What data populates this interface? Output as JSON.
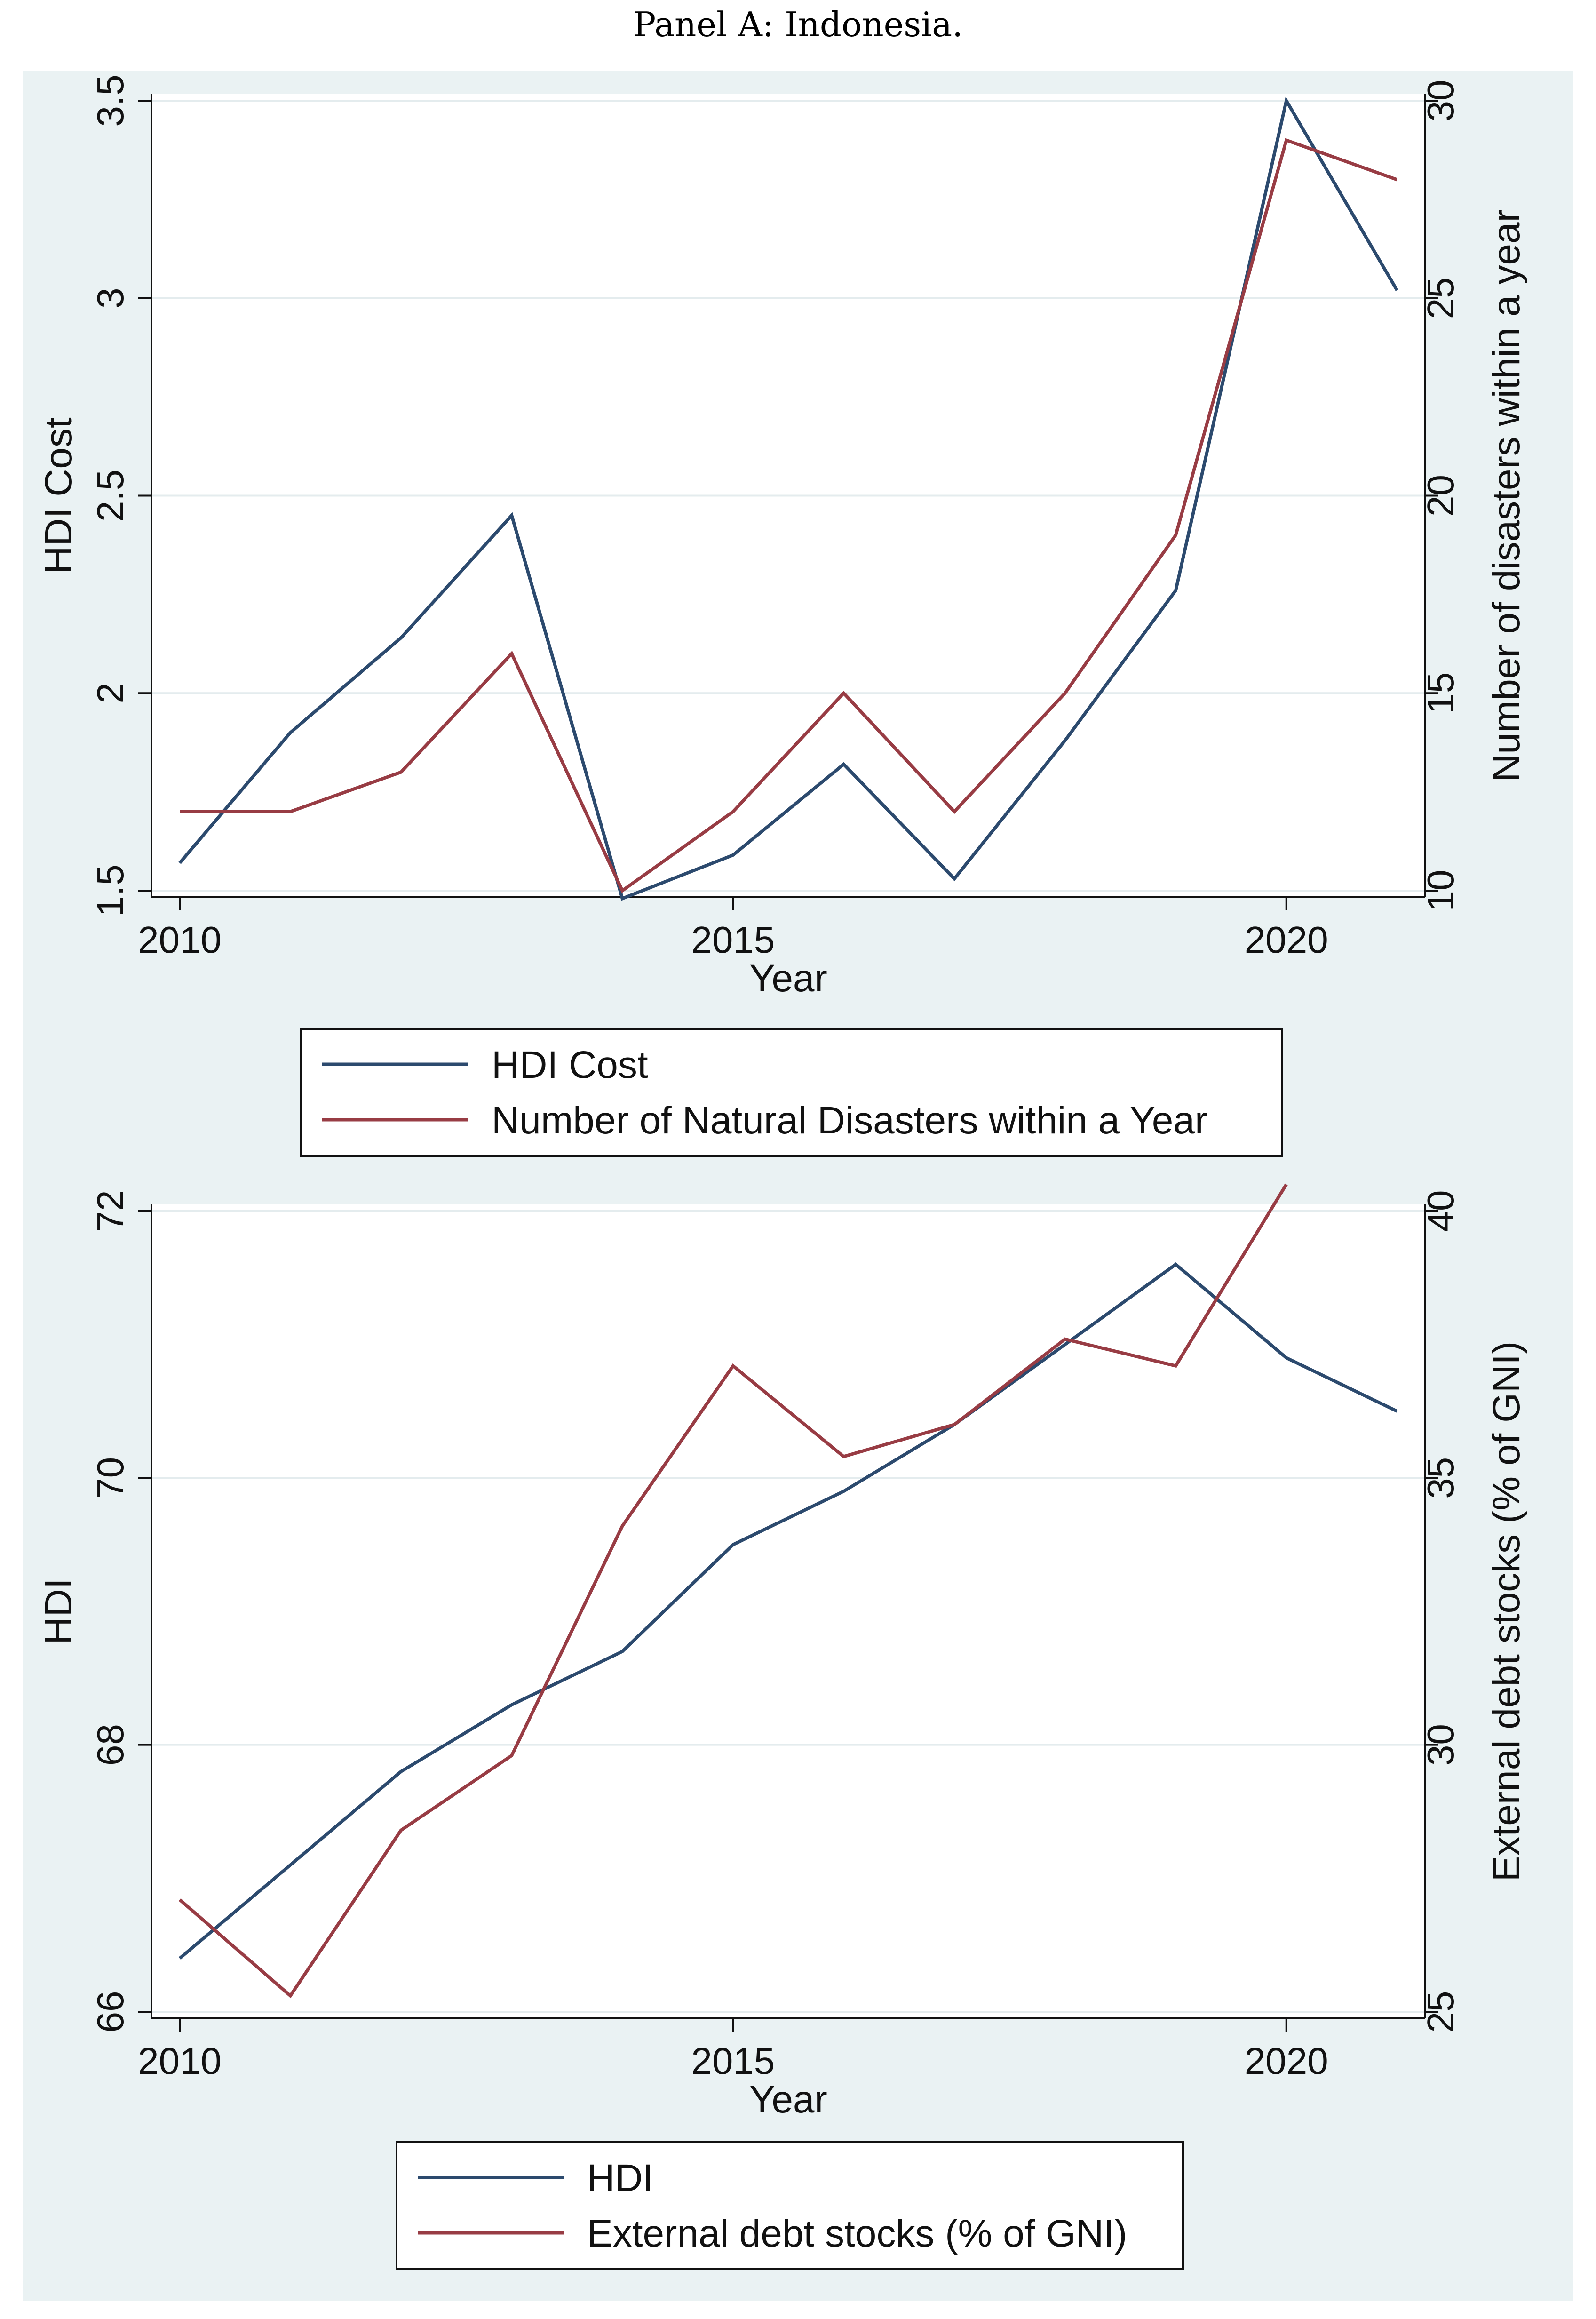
{
  "panel_title": "Panel A: Indonesia.",
  "colors": {
    "navy": "#2c4a6e",
    "maroon": "#983c44",
    "frame": "#eaf2f3",
    "grid": "#e4ecee"
  },
  "chart_data": [
    {
      "type": "line",
      "x": [
        2010,
        2011,
        2012,
        2013,
        2014,
        2015,
        2016,
        2017,
        2018,
        2019,
        2020,
        2021
      ],
      "xlabel": "Year",
      "xticks": [
        "2010",
        "2015",
        "2020"
      ],
      "xlim": [
        2010,
        2021
      ],
      "ylabel_left": "HDI Cost",
      "ylabel_right": "Number of disasters within a year",
      "yticks_left": [
        "1.5",
        "2",
        "2.5",
        "3",
        "3.5"
      ],
      "ylim_left": [
        1.5,
        3.5
      ],
      "yticks_right": [
        "10",
        "15",
        "20",
        "25",
        "30"
      ],
      "ylim_right": [
        10,
        30
      ],
      "grid": true,
      "legend_position": "bottom",
      "series": [
        {
          "name": "HDI Cost",
          "axis": "left",
          "color": "#2c4a6e",
          "values": [
            1.57,
            1.9,
            2.14,
            2.45,
            1.48,
            1.59,
            1.82,
            1.53,
            1.88,
            2.26,
            3.5,
            3.02
          ]
        },
        {
          "name": "Number of Natural Disasters within a Year",
          "axis": "right",
          "color": "#983c44",
          "values": [
            12,
            12,
            13,
            16,
            10,
            12,
            15,
            12,
            15,
            19,
            29,
            28
          ]
        }
      ]
    },
    {
      "type": "line",
      "x": [
        2010,
        2011,
        2012,
        2013,
        2014,
        2015,
        2016,
        2017,
        2018,
        2019,
        2020,
        2021
      ],
      "xlabel": "Year",
      "xticks": [
        "2010",
        "2015",
        "2020"
      ],
      "xlim": [
        2010,
        2021
      ],
      "ylabel_left": "HDI",
      "ylabel_right": "External debt stocks (% of GNI)",
      "yticks_left": [
        "66",
        "68",
        "70",
        "72"
      ],
      "ylim_left": [
        66,
        72
      ],
      "yticks_right": [
        "25",
        "30",
        "35",
        "40"
      ],
      "ylim_right": [
        25,
        40
      ],
      "grid": true,
      "legend_position": "bottom",
      "series": [
        {
          "name": "HDI",
          "axis": "left",
          "color": "#2c4a6e",
          "values": [
            66.4,
            67.1,
            67.8,
            68.3,
            68.7,
            69.5,
            69.9,
            70.4,
            71.0,
            71.6,
            70.9,
            70.5
          ]
        },
        {
          "name": "External debt stocks (% of GNI)",
          "axis": "right",
          "color": "#983c44",
          "values": [
            27.1,
            25.3,
            28.4,
            29.8,
            34.1,
            37.1,
            35.4,
            36.0,
            37.6,
            37.1,
            40.5,
            null
          ]
        }
      ]
    }
  ]
}
